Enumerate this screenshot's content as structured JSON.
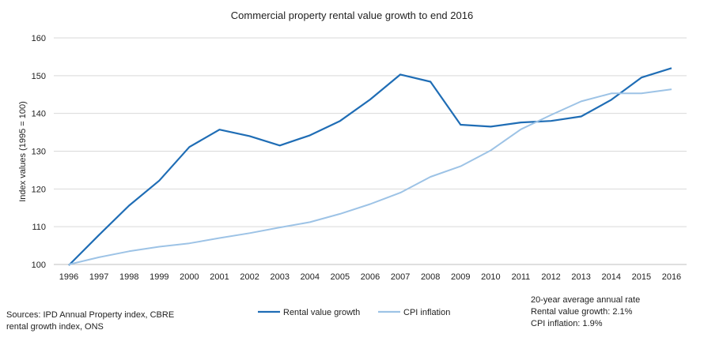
{
  "chart_data": {
    "type": "line",
    "title": "Commercial property rental value growth to end 2016",
    "xlabel": "",
    "ylabel": "Index values (1995 = 100)",
    "ylim": [
      100,
      160
    ],
    "yticks": [
      100,
      110,
      120,
      130,
      140,
      150,
      160
    ],
    "grid": true,
    "categories": [
      "1996",
      "1997",
      "1998",
      "1999",
      "2000",
      "2001",
      "2002",
      "2003",
      "2004",
      "2005",
      "2006",
      "2007",
      "2008",
      "2009",
      "2010",
      "2011",
      "2012",
      "2013",
      "2014",
      "2015",
      "2016"
    ],
    "series": [
      {
        "name": "Rental value growth",
        "color": "#1F6DB5",
        "values": [
          99.8,
          107.8,
          115.6,
          122.2,
          131.1,
          135.7,
          134.0,
          131.5,
          134.2,
          138.0,
          143.7,
          150.3,
          148.4,
          137.0,
          136.5,
          137.6,
          138.0,
          139.2,
          143.6,
          149.5,
          152.0
        ]
      },
      {
        "name": "CPI inflation",
        "color": "#9DC3E6",
        "values": [
          100.0,
          101.9,
          103.5,
          104.7,
          105.6,
          107.0,
          108.3,
          109.8,
          111.2,
          113.4,
          116.0,
          119.0,
          123.2,
          126.0,
          130.2,
          135.8,
          139.6,
          143.2,
          145.3,
          145.3,
          146.4
        ]
      }
    ],
    "legend_position": "bottom-center"
  },
  "sources": {
    "line1": "Sources: IPD Annual Property index, CBRE",
    "line2": "rental growth index, ONS"
  },
  "note": {
    "line1": "20-year average annual rate",
    "line2": "Rental value growth: 2.1%",
    "line3": "CPI inflation: 1.9%"
  },
  "colors": {
    "grid": "#D9D9D9",
    "axis": "#BFBFBF"
  }
}
